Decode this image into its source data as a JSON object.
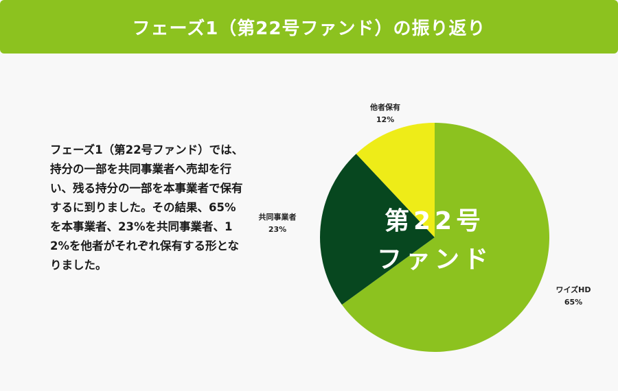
{
  "header": {
    "title": "フェーズ1（第22号ファンド）の振り返り"
  },
  "description": "フェーズ1（第22号ファンド）では、持分の一部を共同事業者へ売却を行い、残る持分の一部を本事業者で保有するに到りました。その結果、65%を本事業者、23%を共同事業者、12%を他者がそれぞれ保有する形となりました。",
  "chart_data": {
    "type": "pie",
    "center_label": [
      "第22号",
      "ファンド"
    ],
    "slices": [
      {
        "name": "ワイズHD",
        "value": 65,
        "label": "65%",
        "color": "#8cc21f"
      },
      {
        "name": "共同事業者",
        "value": 23,
        "label": "23%",
        "color": "#07471f"
      },
      {
        "name": "他者保有",
        "value": 12,
        "label": "12%",
        "color": "#eeec18"
      }
    ]
  }
}
